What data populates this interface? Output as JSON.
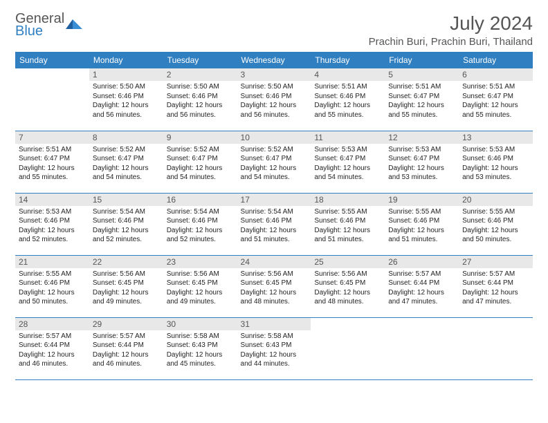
{
  "brand": {
    "line1": "General",
    "line2": "Blue"
  },
  "colors": {
    "accent": "#2f7fc1",
    "daynum_bg": "#e8e8e8",
    "text": "#222222",
    "muted": "#555555"
  },
  "title": "July 2024",
  "location": "Prachin Buri, Prachin Buri, Thailand",
  "weekdays": [
    "Sunday",
    "Monday",
    "Tuesday",
    "Wednesday",
    "Thursday",
    "Friday",
    "Saturday"
  ],
  "weeks": [
    [
      null,
      {
        "n": "1",
        "sr": "5:50 AM",
        "ss": "6:46 PM",
        "dl": "12 hours and 56 minutes."
      },
      {
        "n": "2",
        "sr": "5:50 AM",
        "ss": "6:46 PM",
        "dl": "12 hours and 56 minutes."
      },
      {
        "n": "3",
        "sr": "5:50 AM",
        "ss": "6:46 PM",
        "dl": "12 hours and 56 minutes."
      },
      {
        "n": "4",
        "sr": "5:51 AM",
        "ss": "6:46 PM",
        "dl": "12 hours and 55 minutes."
      },
      {
        "n": "5",
        "sr": "5:51 AM",
        "ss": "6:47 PM",
        "dl": "12 hours and 55 minutes."
      },
      {
        "n": "6",
        "sr": "5:51 AM",
        "ss": "6:47 PM",
        "dl": "12 hours and 55 minutes."
      }
    ],
    [
      {
        "n": "7",
        "sr": "5:51 AM",
        "ss": "6:47 PM",
        "dl": "12 hours and 55 minutes."
      },
      {
        "n": "8",
        "sr": "5:52 AM",
        "ss": "6:47 PM",
        "dl": "12 hours and 54 minutes."
      },
      {
        "n": "9",
        "sr": "5:52 AM",
        "ss": "6:47 PM",
        "dl": "12 hours and 54 minutes."
      },
      {
        "n": "10",
        "sr": "5:52 AM",
        "ss": "6:47 PM",
        "dl": "12 hours and 54 minutes."
      },
      {
        "n": "11",
        "sr": "5:53 AM",
        "ss": "6:47 PM",
        "dl": "12 hours and 54 minutes."
      },
      {
        "n": "12",
        "sr": "5:53 AM",
        "ss": "6:47 PM",
        "dl": "12 hours and 53 minutes."
      },
      {
        "n": "13",
        "sr": "5:53 AM",
        "ss": "6:46 PM",
        "dl": "12 hours and 53 minutes."
      }
    ],
    [
      {
        "n": "14",
        "sr": "5:53 AM",
        "ss": "6:46 PM",
        "dl": "12 hours and 52 minutes."
      },
      {
        "n": "15",
        "sr": "5:54 AM",
        "ss": "6:46 PM",
        "dl": "12 hours and 52 minutes."
      },
      {
        "n": "16",
        "sr": "5:54 AM",
        "ss": "6:46 PM",
        "dl": "12 hours and 52 minutes."
      },
      {
        "n": "17",
        "sr": "5:54 AM",
        "ss": "6:46 PM",
        "dl": "12 hours and 51 minutes."
      },
      {
        "n": "18",
        "sr": "5:55 AM",
        "ss": "6:46 PM",
        "dl": "12 hours and 51 minutes."
      },
      {
        "n": "19",
        "sr": "5:55 AM",
        "ss": "6:46 PM",
        "dl": "12 hours and 51 minutes."
      },
      {
        "n": "20",
        "sr": "5:55 AM",
        "ss": "6:46 PM",
        "dl": "12 hours and 50 minutes."
      }
    ],
    [
      {
        "n": "21",
        "sr": "5:55 AM",
        "ss": "6:46 PM",
        "dl": "12 hours and 50 minutes."
      },
      {
        "n": "22",
        "sr": "5:56 AM",
        "ss": "6:45 PM",
        "dl": "12 hours and 49 minutes."
      },
      {
        "n": "23",
        "sr": "5:56 AM",
        "ss": "6:45 PM",
        "dl": "12 hours and 49 minutes."
      },
      {
        "n": "24",
        "sr": "5:56 AM",
        "ss": "6:45 PM",
        "dl": "12 hours and 48 minutes."
      },
      {
        "n": "25",
        "sr": "5:56 AM",
        "ss": "6:45 PM",
        "dl": "12 hours and 48 minutes."
      },
      {
        "n": "26",
        "sr": "5:57 AM",
        "ss": "6:44 PM",
        "dl": "12 hours and 47 minutes."
      },
      {
        "n": "27",
        "sr": "5:57 AM",
        "ss": "6:44 PM",
        "dl": "12 hours and 47 minutes."
      }
    ],
    [
      {
        "n": "28",
        "sr": "5:57 AM",
        "ss": "6:44 PM",
        "dl": "12 hours and 46 minutes."
      },
      {
        "n": "29",
        "sr": "5:57 AM",
        "ss": "6:44 PM",
        "dl": "12 hours and 46 minutes."
      },
      {
        "n": "30",
        "sr": "5:58 AM",
        "ss": "6:43 PM",
        "dl": "12 hours and 45 minutes."
      },
      {
        "n": "31",
        "sr": "5:58 AM",
        "ss": "6:43 PM",
        "dl": "12 hours and 44 minutes."
      },
      null,
      null,
      null
    ]
  ],
  "labels": {
    "sunrise": "Sunrise: ",
    "sunset": "Sunset: ",
    "daylight": "Daylight: "
  }
}
